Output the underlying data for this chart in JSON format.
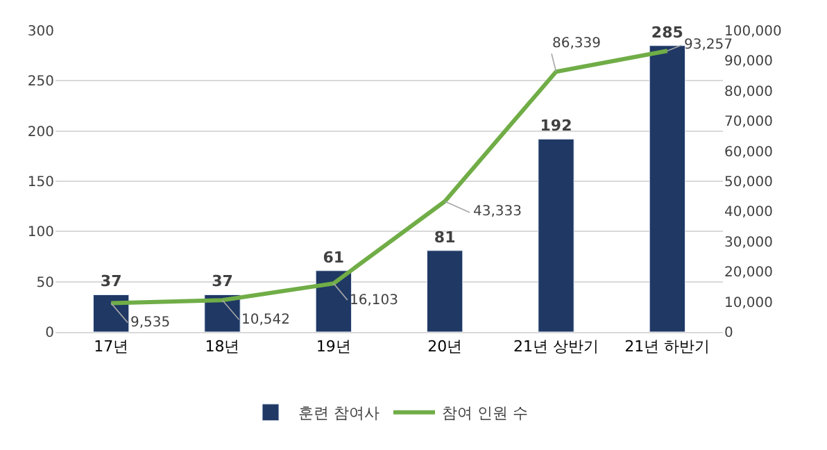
{
  "chart_data": {
    "type": "bar",
    "categories": [
      "17년",
      "18년",
      "19년",
      "20년",
      "21년 상반기",
      "21년 하반기"
    ],
    "series": [
      {
        "name": "훈련 참여사",
        "color": "#1f3864",
        "values": [
          37,
          37,
          61,
          81,
          192,
          285
        ],
        "value_labels": [
          "37",
          "37",
          "61",
          "81",
          "192",
          "285"
        ]
      },
      {
        "name": "참여 인원 수",
        "type": "line",
        "axis": "y2",
        "color": "#70ad47",
        "values": [
          9535,
          10542,
          16103,
          43333,
          86339,
          93257
        ],
        "value_labels": [
          "9,535",
          "10,542",
          "16,103",
          "43,333",
          "86,339",
          "93,257"
        ]
      }
    ],
    "ylim": [
      0,
      300
    ],
    "yticks": [
      0,
      50,
      100,
      150,
      200,
      250,
      300
    ],
    "y2lim": [
      0,
      100000
    ],
    "y2ticks": [
      {
        "value": 0,
        "label": "0"
      },
      {
        "value": 10000,
        "label": "10,000"
      },
      {
        "value": 20000,
        "label": "20,000"
      },
      {
        "value": 30000,
        "label": "30,000"
      },
      {
        "value": 40000,
        "label": "40,000"
      },
      {
        "value": 50000,
        "label": "50,000"
      },
      {
        "value": 60000,
        "label": "60,000"
      },
      {
        "value": 70000,
        "label": "70,000"
      },
      {
        "value": 80000,
        "label": "80,000"
      },
      {
        "value": 90000,
        "label": "90,000"
      },
      {
        "value": 100000,
        "label": "100,000"
      }
    ],
    "grid": "y",
    "legend": "bottom",
    "marker": "none",
    "line_style": "solid"
  }
}
